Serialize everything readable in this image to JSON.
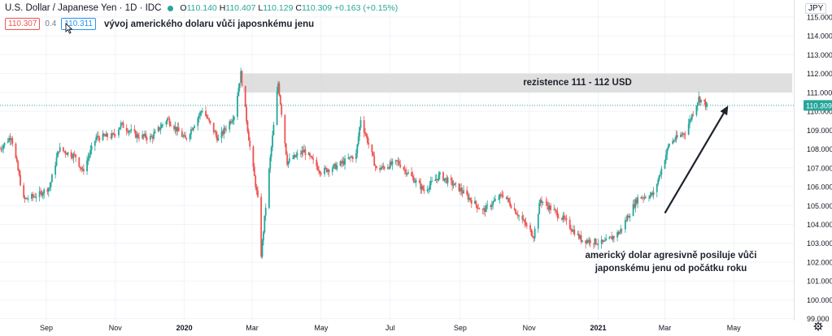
{
  "header": {
    "symbol": "U.S. Dollar / Japanese Yen · 1D · IDC",
    "open_label": "O",
    "open": "110.140",
    "high_label": "H",
    "high": "110.407",
    "low_label": "L",
    "low": "110.129",
    "close_label": "C",
    "close": "110.309",
    "change": "+0.163 (+0.15%)",
    "bid": "110.307",
    "spread": "0.4",
    "ask": "110.311",
    "note": "vývoj amerického dolaru vůči japosnkému jenu",
    "currency": "JPY"
  },
  "colors": {
    "up": "#26a69a",
    "down": "#ef5350",
    "resistance_zone": "#d9d9d9",
    "last_price_line": "#26a69a",
    "arrow": "#1e222d"
  },
  "icons": {
    "cursor": "cursor-icon",
    "settings": "gear-icon",
    "status": "dot-icon"
  },
  "annotations": {
    "resistance": "rezistence 111 - 112 USD",
    "trend_line1": "americký dolar agresivně posiluje vůči",
    "trend_line2": "japonskému jenu od počátku roku"
  },
  "chart_data": {
    "type": "candlestick",
    "title": "",
    "xlabel": "",
    "ylabel": "",
    "ylim": [
      98.9,
      115.9
    ],
    "y_ticks": [
      "99.000",
      "100.000",
      "101.000",
      "102.000",
      "103.000",
      "104.000",
      "105.000",
      "106.000",
      "107.000",
      "108.000",
      "109.000",
      "110.000",
      "111.000",
      "112.000",
      "113.000",
      "114.000",
      "115.000"
    ],
    "y_tick_values": [
      99,
      100,
      101,
      102,
      103,
      104,
      105,
      106,
      107,
      108,
      109,
      110,
      111,
      112,
      113,
      114,
      115
    ],
    "x_ticks": [
      {
        "label": "Sep",
        "date": "2019-09-01",
        "bold": false
      },
      {
        "label": "Nov",
        "date": "2019-11-01",
        "bold": false
      },
      {
        "label": "2020",
        "date": "2020-01-01",
        "bold": true
      },
      {
        "label": "Mar",
        "date": "2020-03-01",
        "bold": false
      },
      {
        "label": "May",
        "date": "2020-05-01",
        "bold": false
      },
      {
        "label": "Jul",
        "date": "2020-07-01",
        "bold": false
      },
      {
        "label": "Sep",
        "date": "2020-09-01",
        "bold": false
      },
      {
        "label": "Nov",
        "date": "2020-11-01",
        "bold": false
      },
      {
        "label": "2021",
        "date": "2021-01-01",
        "bold": true
      },
      {
        "label": "Mar",
        "date": "2021-03-01",
        "bold": false
      },
      {
        "label": "May",
        "date": "2021-05-01",
        "bold": false
      }
    ],
    "x_range": [
      "2019-07-22",
      "2021-06-23"
    ],
    "last_price": 110.309,
    "last_price_label": "110.309",
    "resistance_zone": [
      111,
      112
    ],
    "resistance_start": "2020-02-22",
    "trend_arrow": {
      "from_date": "2021-03-01",
      "from_value": 104.6,
      "to_date": "2021-04-26",
      "to_value": 110.3
    },
    "series": [
      {
        "date": "2019-07-22",
        "close": 108.0
      },
      {
        "date": "2019-08-01",
        "close": 108.7
      },
      {
        "date": "2019-08-12",
        "close": 105.3
      },
      {
        "date": "2019-08-26",
        "close": 105.6
      },
      {
        "date": "2019-09-04",
        "close": 106.0
      },
      {
        "date": "2019-09-12",
        "close": 108.0
      },
      {
        "date": "2019-09-27",
        "close": 107.6
      },
      {
        "date": "2019-10-03",
        "close": 106.8
      },
      {
        "date": "2019-10-15",
        "close": 108.6
      },
      {
        "date": "2019-10-30",
        "close": 108.7
      },
      {
        "date": "2019-11-06",
        "close": 109.3
      },
      {
        "date": "2019-11-20",
        "close": 108.7
      },
      {
        "date": "2019-12-03",
        "close": 108.6
      },
      {
        "date": "2019-12-17",
        "close": 109.6
      },
      {
        "date": "2020-01-02",
        "close": 108.5
      },
      {
        "date": "2020-01-17",
        "close": 110.1
      },
      {
        "date": "2020-01-31",
        "close": 108.5
      },
      {
        "date": "2020-02-14",
        "close": 109.8
      },
      {
        "date": "2020-02-20",
        "close": 112.0
      },
      {
        "date": "2020-02-28",
        "close": 108.1
      },
      {
        "date": "2020-03-06",
        "close": 105.3
      },
      {
        "date": "2020-03-09",
        "close": 102.4
      },
      {
        "date": "2020-03-17",
        "close": 107.5
      },
      {
        "date": "2020-03-24",
        "close": 111.5
      },
      {
        "date": "2020-04-01",
        "close": 107.3
      },
      {
        "date": "2020-04-16",
        "close": 107.9
      },
      {
        "date": "2020-05-01",
        "close": 106.8
      },
      {
        "date": "2020-05-15",
        "close": 107.1
      },
      {
        "date": "2020-06-01",
        "close": 107.7
      },
      {
        "date": "2020-06-05",
        "close": 109.6
      },
      {
        "date": "2020-06-19",
        "close": 106.9
      },
      {
        "date": "2020-07-08",
        "close": 107.3
      },
      {
        "date": "2020-07-31",
        "close": 105.8
      },
      {
        "date": "2020-08-14",
        "close": 106.6
      },
      {
        "date": "2020-08-31",
        "close": 105.9
      },
      {
        "date": "2020-09-21",
        "close": 104.7
      },
      {
        "date": "2020-10-09",
        "close": 105.6
      },
      {
        "date": "2020-11-05",
        "close": 103.4
      },
      {
        "date": "2020-11-11",
        "close": 105.3
      },
      {
        "date": "2020-12-01",
        "close": 104.3
      },
      {
        "date": "2020-12-17",
        "close": 103.2
      },
      {
        "date": "2021-01-06",
        "close": 103.0
      },
      {
        "date": "2021-01-20",
        "close": 103.6
      },
      {
        "date": "2021-02-05",
        "close": 105.4
      },
      {
        "date": "2021-02-19",
        "close": 105.6
      },
      {
        "date": "2021-03-05",
        "close": 108.3
      },
      {
        "date": "2021-03-19",
        "close": 108.9
      },
      {
        "date": "2021-03-31",
        "close": 110.7
      },
      {
        "date": "2021-04-07",
        "close": 110.3
      }
    ]
  }
}
